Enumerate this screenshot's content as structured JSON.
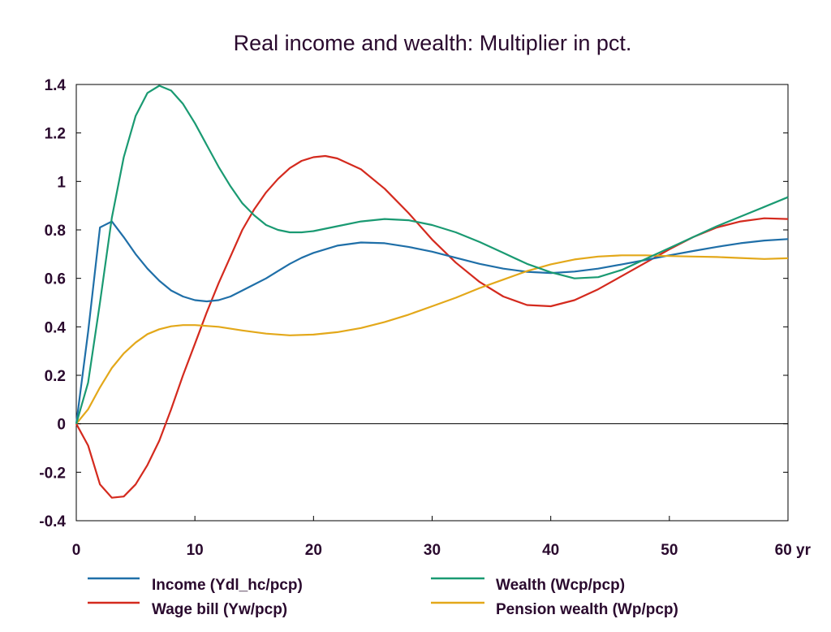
{
  "chart_data": {
    "type": "line",
    "title": "Real income and wealth: Multiplier in pct.",
    "xlabel": "",
    "ylabel": "",
    "x_unit_label": "yr",
    "xlim": [
      0,
      60
    ],
    "ylim": [
      -0.4,
      1.4
    ],
    "xticks": [
      0,
      10,
      20,
      30,
      40,
      50,
      60
    ],
    "yticks": [
      -0.4,
      -0.2,
      0,
      0.2,
      0.4,
      0.6,
      0.8,
      1,
      1.2,
      1.4
    ],
    "x_tick_labels": [
      "0",
      "10",
      "20",
      "30",
      "40",
      "50",
      "60 yr"
    ],
    "y_tick_labels": [
      "-0.4",
      "-0.2",
      "0",
      "0.2",
      "0.4",
      "0.6",
      "0.8",
      "1",
      "1.2",
      "1.4"
    ],
    "grid": false,
    "legend_position": "bottom",
    "series": [
      {
        "name": "Income (Ydl_hc/pcp)",
        "color": "#1f6fa8",
        "points": [
          [
            0,
            0
          ],
          [
            1,
            0.38
          ],
          [
            2,
            0.81
          ],
          [
            3,
            0.835
          ],
          [
            4,
            0.77
          ],
          [
            5,
            0.7
          ],
          [
            6,
            0.64
          ],
          [
            7,
            0.59
          ],
          [
            8,
            0.55
          ],
          [
            9,
            0.525
          ],
          [
            10,
            0.51
          ],
          [
            11,
            0.505
          ],
          [
            12,
            0.51
          ],
          [
            13,
            0.525
          ],
          [
            14,
            0.55
          ],
          [
            15,
            0.575
          ],
          [
            16,
            0.6
          ],
          [
            17,
            0.63
          ],
          [
            18,
            0.66
          ],
          [
            19,
            0.685
          ],
          [
            20,
            0.705
          ],
          [
            22,
            0.735
          ],
          [
            24,
            0.748
          ],
          [
            26,
            0.745
          ],
          [
            28,
            0.73
          ],
          [
            30,
            0.71
          ],
          [
            32,
            0.685
          ],
          [
            34,
            0.66
          ],
          [
            36,
            0.64
          ],
          [
            38,
            0.627
          ],
          [
            40,
            0.622
          ],
          [
            42,
            0.628
          ],
          [
            44,
            0.64
          ],
          [
            46,
            0.658
          ],
          [
            48,
            0.676
          ],
          [
            50,
            0.695
          ],
          [
            52,
            0.713
          ],
          [
            54,
            0.73
          ],
          [
            56,
            0.745
          ],
          [
            58,
            0.756
          ],
          [
            60,
            0.762
          ]
        ]
      },
      {
        "name": "Wealth (Wcp/pcp)",
        "color": "#1a9a72",
        "points": [
          [
            0,
            0
          ],
          [
            1,
            0.17
          ],
          [
            2,
            0.5
          ],
          [
            3,
            0.85
          ],
          [
            4,
            1.1
          ],
          [
            5,
            1.27
          ],
          [
            6,
            1.365
          ],
          [
            7,
            1.395
          ],
          [
            8,
            1.375
          ],
          [
            9,
            1.32
          ],
          [
            10,
            1.24
          ],
          [
            11,
            1.15
          ],
          [
            12,
            1.06
          ],
          [
            13,
            0.98
          ],
          [
            14,
            0.91
          ],
          [
            15,
            0.86
          ],
          [
            16,
            0.82
          ],
          [
            17,
            0.8
          ],
          [
            18,
            0.79
          ],
          [
            19,
            0.79
          ],
          [
            20,
            0.795
          ],
          [
            22,
            0.815
          ],
          [
            24,
            0.835
          ],
          [
            26,
            0.845
          ],
          [
            28,
            0.84
          ],
          [
            30,
            0.82
          ],
          [
            32,
            0.79
          ],
          [
            34,
            0.75
          ],
          [
            36,
            0.705
          ],
          [
            38,
            0.66
          ],
          [
            40,
            0.625
          ],
          [
            42,
            0.6
          ],
          [
            44,
            0.605
          ],
          [
            46,
            0.635
          ],
          [
            48,
            0.68
          ],
          [
            50,
            0.725
          ],
          [
            52,
            0.77
          ],
          [
            54,
            0.815
          ],
          [
            56,
            0.855
          ],
          [
            58,
            0.895
          ],
          [
            60,
            0.935
          ]
        ]
      },
      {
        "name": "Wage bill (Yw/pcp)",
        "color": "#d42a1e",
        "points": [
          [
            0,
            0
          ],
          [
            1,
            -0.09
          ],
          [
            2,
            -0.25
          ],
          [
            3,
            -0.305
          ],
          [
            4,
            -0.3
          ],
          [
            5,
            -0.25
          ],
          [
            6,
            -0.17
          ],
          [
            7,
            -0.07
          ],
          [
            8,
            0.06
          ],
          [
            9,
            0.2
          ],
          [
            10,
            0.33
          ],
          [
            11,
            0.46
          ],
          [
            12,
            0.58
          ],
          [
            13,
            0.69
          ],
          [
            14,
            0.8
          ],
          [
            15,
            0.885
          ],
          [
            16,
            0.955
          ],
          [
            17,
            1.01
          ],
          [
            18,
            1.055
          ],
          [
            19,
            1.085
          ],
          [
            20,
            1.1
          ],
          [
            21,
            1.105
          ],
          [
            22,
            1.095
          ],
          [
            24,
            1.05
          ],
          [
            26,
            0.97
          ],
          [
            28,
            0.87
          ],
          [
            30,
            0.76
          ],
          [
            32,
            0.665
          ],
          [
            34,
            0.585
          ],
          [
            36,
            0.525
          ],
          [
            38,
            0.49
          ],
          [
            40,
            0.485
          ],
          [
            42,
            0.51
          ],
          [
            44,
            0.555
          ],
          [
            46,
            0.61
          ],
          [
            48,
            0.665
          ],
          [
            50,
            0.72
          ],
          [
            52,
            0.77
          ],
          [
            54,
            0.81
          ],
          [
            56,
            0.835
          ],
          [
            58,
            0.848
          ],
          [
            60,
            0.845
          ]
        ]
      },
      {
        "name": "Pension wealth (Wp/pcp)",
        "color": "#e3a81a",
        "points": [
          [
            0,
            0
          ],
          [
            1,
            0.06
          ],
          [
            2,
            0.15
          ],
          [
            3,
            0.23
          ],
          [
            4,
            0.29
          ],
          [
            5,
            0.335
          ],
          [
            6,
            0.37
          ],
          [
            7,
            0.39
          ],
          [
            8,
            0.402
          ],
          [
            9,
            0.407
          ],
          [
            10,
            0.407
          ],
          [
            12,
            0.4
          ],
          [
            14,
            0.385
          ],
          [
            16,
            0.372
          ],
          [
            18,
            0.365
          ],
          [
            20,
            0.368
          ],
          [
            22,
            0.378
          ],
          [
            24,
            0.395
          ],
          [
            26,
            0.42
          ],
          [
            28,
            0.45
          ],
          [
            30,
            0.485
          ],
          [
            32,
            0.52
          ],
          [
            34,
            0.56
          ],
          [
            36,
            0.595
          ],
          [
            38,
            0.63
          ],
          [
            40,
            0.658
          ],
          [
            42,
            0.678
          ],
          [
            44,
            0.69
          ],
          [
            46,
            0.695
          ],
          [
            48,
            0.695
          ],
          [
            50,
            0.692
          ],
          [
            52,
            0.69
          ],
          [
            54,
            0.688
          ],
          [
            56,
            0.684
          ],
          [
            58,
            0.68
          ],
          [
            60,
            0.683
          ]
        ]
      }
    ]
  }
}
